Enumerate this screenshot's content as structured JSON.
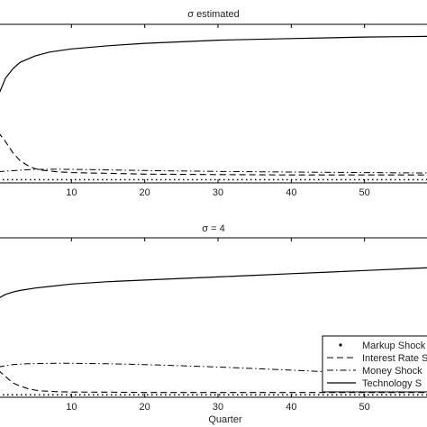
{
  "chart_data": [
    {
      "type": "line",
      "title": "σ estimated",
      "xlabel": "",
      "ylabel": "",
      "xlim": [
        0,
        60
      ],
      "ylim": [
        0,
        1
      ],
      "xticks": [
        "10",
        "20",
        "30",
        "40",
        "50"
      ],
      "grid": false,
      "series": [
        {
          "name": "Technology Shock",
          "style": "solid",
          "x": [
            0,
            1,
            2,
            3,
            4,
            5,
            7,
            10,
            15,
            20,
            25,
            30,
            35,
            40,
            45,
            50,
            55,
            60
          ],
          "y": [
            0.55,
            0.66,
            0.72,
            0.76,
            0.78,
            0.8,
            0.825,
            0.845,
            0.865,
            0.88,
            0.89,
            0.9,
            0.905,
            0.91,
            0.915,
            0.92,
            0.922,
            0.925
          ]
        },
        {
          "name": "Interest Rate Shock",
          "style": "dashed",
          "x": [
            0,
            1,
            2,
            3,
            4,
            5,
            6,
            8,
            10,
            15,
            20,
            30,
            40,
            50,
            60
          ],
          "y": [
            0.32,
            0.26,
            0.19,
            0.14,
            0.11,
            0.09,
            0.08,
            0.07,
            0.065,
            0.06,
            0.055,
            0.052,
            0.05,
            0.05,
            0.05
          ]
        },
        {
          "name": "Money Shock",
          "style": "dashdot",
          "x": [
            0,
            3,
            5,
            8,
            10,
            15,
            20,
            30,
            40,
            50,
            60
          ],
          "y": [
            0.07,
            0.08,
            0.085,
            0.086,
            0.085,
            0.082,
            0.078,
            0.072,
            0.068,
            0.065,
            0.062
          ]
        },
        {
          "name": "Markup Shock",
          "style": "dotted",
          "x": [
            0,
            5,
            10,
            20,
            30,
            40,
            50,
            60
          ],
          "y": [
            0.02,
            0.02,
            0.02,
            0.02,
            0.02,
            0.02,
            0.02,
            0.02
          ]
        }
      ]
    },
    {
      "type": "line",
      "title": "σ = 4",
      "xlabel": "Quarter",
      "ylabel": "",
      "xlim": [
        0,
        60
      ],
      "ylim": [
        0,
        1
      ],
      "xticks": [
        "10",
        "20",
        "30",
        "40",
        "50"
      ],
      "grid": false,
      "legend": {
        "position": "bottom-right",
        "entries": [
          "Markup Shock",
          "Interest Rate Shock",
          "Money Shock",
          "Technology Shock"
        ],
        "labels": [
          "Markup Shock",
          "Interest Rate S",
          "Money Shock",
          "Technology S"
        ]
      },
      "series": [
        {
          "name": "Technology Shock",
          "style": "solid",
          "x": [
            0,
            1,
            2,
            3,
            5,
            7,
            10,
            15,
            20,
            25,
            30,
            35,
            40,
            45,
            50,
            55,
            60
          ],
          "y": [
            0.62,
            0.645,
            0.66,
            0.67,
            0.685,
            0.695,
            0.71,
            0.725,
            0.735,
            0.745,
            0.755,
            0.765,
            0.775,
            0.785,
            0.795,
            0.805,
            0.815
          ]
        },
        {
          "name": "Interest Rate Shock",
          "style": "dashed",
          "x": [
            0,
            1,
            2,
            3,
            4,
            5,
            6,
            8,
            10,
            15,
            20,
            30,
            40,
            50,
            60
          ],
          "y": [
            0.17,
            0.13,
            0.09,
            0.07,
            0.055,
            0.045,
            0.04,
            0.035,
            0.033,
            0.032,
            0.03,
            0.03,
            0.03,
            0.03,
            0.03
          ]
        },
        {
          "name": "Money Shock",
          "style": "dashdot",
          "x": [
            0,
            2,
            4,
            6,
            8,
            10,
            15,
            20,
            25,
            30,
            35,
            40,
            45,
            50,
            55,
            60
          ],
          "y": [
            0.19,
            0.205,
            0.21,
            0.212,
            0.213,
            0.213,
            0.21,
            0.205,
            0.198,
            0.19,
            0.18,
            0.17,
            0.16,
            0.15,
            0.14,
            0.13
          ]
        },
        {
          "name": "Markup Shock",
          "style": "dotted",
          "x": [
            0,
            5,
            10,
            20,
            30,
            40,
            50,
            60
          ],
          "y": [
            0.015,
            0.015,
            0.015,
            0.015,
            0.015,
            0.015,
            0.015,
            0.015
          ]
        }
      ]
    }
  ]
}
